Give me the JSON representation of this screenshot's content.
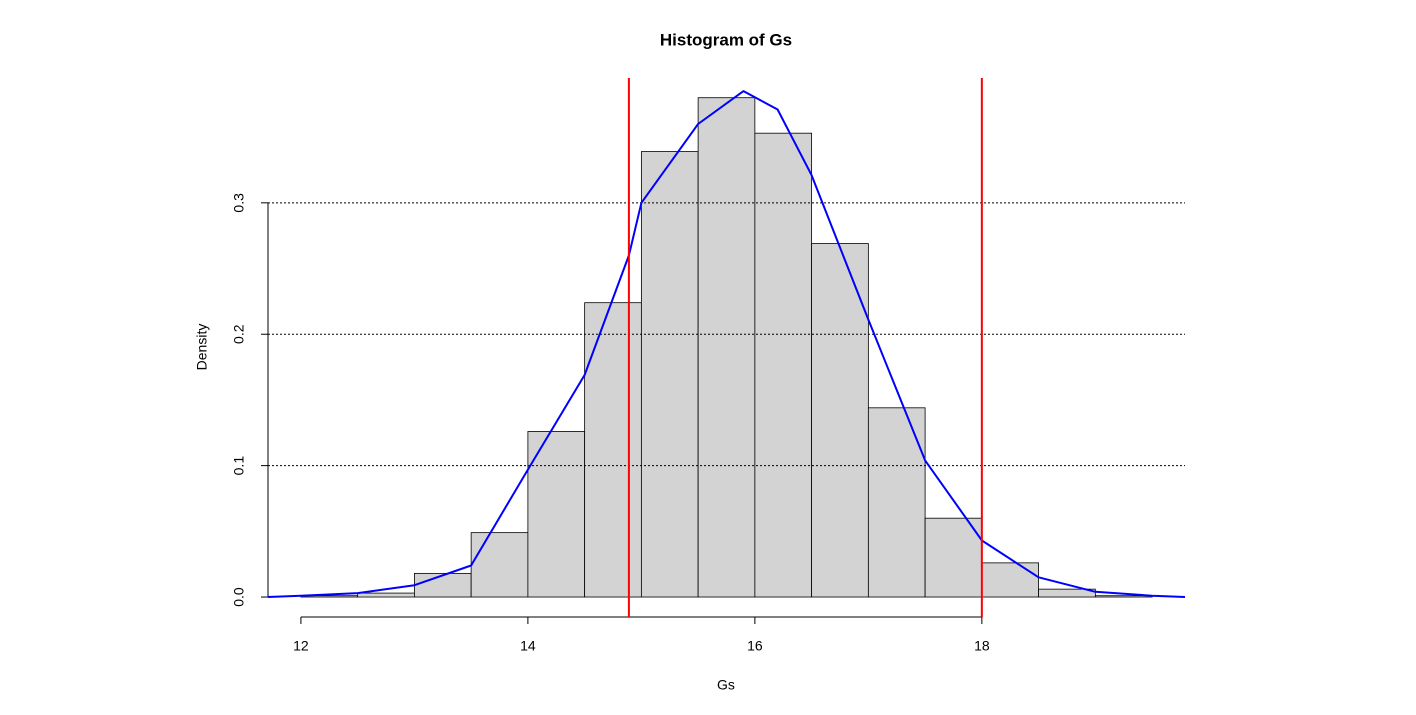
{
  "chart_data": {
    "type": "histogram",
    "title": "Histogram of Gs",
    "x_label": "Gs",
    "y_label": "Density",
    "bins": [
      12,
      12.5,
      13,
      13.5,
      14,
      14.5,
      15,
      15.5,
      16,
      16.5,
      17,
      17.5,
      18,
      18.5,
      19,
      19.5
    ],
    "values": [
      0.001,
      0.003,
      0.018,
      0.049,
      0.126,
      0.224,
      0.339,
      0.38,
      0.353,
      0.269,
      0.144,
      0.06,
      0.026,
      0.006,
      0.001
    ],
    "color": "#d3d3d3",
    "density": {
      "color": "#0000ff",
      "x": [
        11.71,
        12,
        12.5,
        13,
        13.5,
        14,
        14.5,
        14.89,
        15,
        15.5,
        15.9,
        16.2,
        16.5,
        17,
        17.5,
        18,
        18.5,
        19,
        19.5,
        19.79
      ],
      "values": [
        0,
        0.001,
        0.003,
        0.009,
        0.024,
        0.097,
        0.169,
        0.26,
        0.3,
        0.36,
        0.385,
        0.371,
        0.321,
        0.211,
        0.104,
        0.043,
        0.015,
        0.004,
        0.001,
        0
      ]
    },
    "vlines": [
      14.89,
      18
    ],
    "vline_color": "#ff0000",
    "hlines": [
      0.1,
      0.2,
      0.3
    ],
    "xlim": [
      11.71,
      19.79
    ],
    "ylim": [
      -0.0152,
      0.395
    ],
    "xticks": [
      12,
      14,
      16,
      18
    ],
    "yticks": [
      {
        "value": 0,
        "label": "0.0"
      },
      0.1,
      0.2,
      0.3
    ]
  }
}
